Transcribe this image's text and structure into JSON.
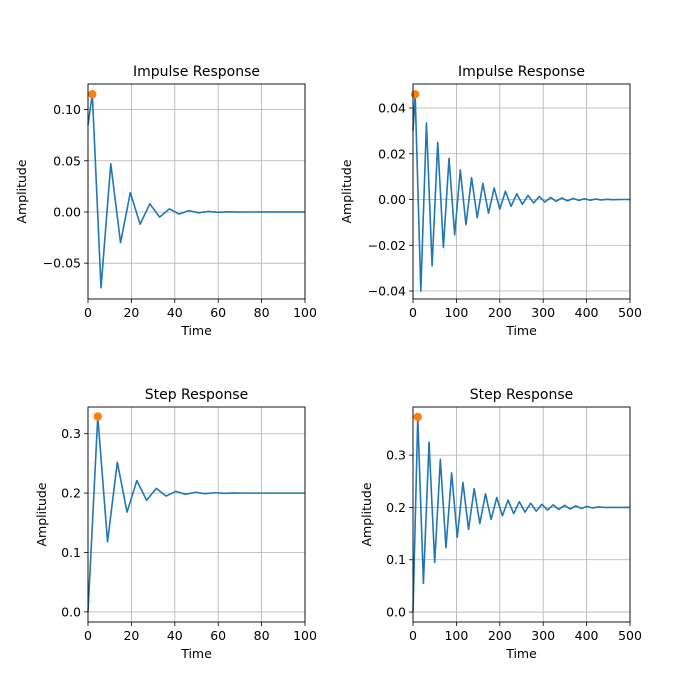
{
  "chart_data": [
    {
      "type": "line",
      "title": "Impulse Response",
      "xlabel": "Time",
      "ylabel": "Amplitude",
      "xlim": [
        0,
        100
      ],
      "ylim": [
        -0.085,
        0.125
      ],
      "xticks": [
        0,
        20,
        40,
        60,
        80,
        100
      ],
      "yticks": [
        -0.05,
        0.0,
        0.05,
        0.1
      ],
      "ytick_labels": [
        "−0.05",
        "0.00",
        "0.05",
        "0.10"
      ],
      "grid": true,
      "series": [
        {
          "color": "#1f77b4",
          "x": [
            0,
            2,
            6,
            10.5,
            15,
            19.5,
            24,
            28.5,
            33,
            37.5,
            42,
            46.5,
            51,
            55.5,
            60,
            64.5,
            69,
            80,
            100
          ],
          "y": [
            0.085,
            0.115,
            -0.074,
            0.047,
            -0.03,
            0.019,
            -0.012,
            0.008,
            -0.005,
            0.003,
            -0.002,
            0.0013,
            -0.0008,
            0.0005,
            -0.0003,
            0.0002,
            -0.0001,
            0,
            0
          ]
        }
      ],
      "marker": {
        "x": 2,
        "y": 0.115,
        "color": "#ff7f0e"
      }
    },
    {
      "type": "line",
      "title": "Impulse Response",
      "xlabel": "Time",
      "ylabel": "Amplitude",
      "xlim": [
        0,
        500
      ],
      "ylim": [
        -0.0435,
        0.0505
      ],
      "xticks": [
        0,
        100,
        200,
        300,
        400,
        500
      ],
      "yticks": [
        -0.04,
        -0.02,
        0.0,
        0.02,
        0.04
      ],
      "ytick_labels": [
        "−0.04",
        "−0.02",
        "0.00",
        "0.02",
        "0.04"
      ],
      "grid": true,
      "series": [
        {
          "color": "#1f77b4",
          "x": [
            0,
            5,
            18,
            31,
            44,
            57,
            70,
            83,
            96,
            109,
            122,
            135,
            148,
            161,
            174,
            187,
            200,
            213,
            226,
            239,
            252,
            265,
            278,
            291,
            304,
            317,
            330,
            343,
            356,
            369,
            382,
            395,
            408,
            421,
            434,
            447,
            460,
            480,
            500
          ],
          "y": [
            0.03,
            0.046,
            -0.04,
            0.0335,
            -0.029,
            0.025,
            -0.021,
            0.018,
            -0.0155,
            0.013,
            -0.011,
            0.0095,
            -0.008,
            0.007,
            -0.006,
            0.005,
            -0.0042,
            0.0036,
            -0.003,
            0.0025,
            -0.0021,
            0.0018,
            -0.0015,
            0.0013,
            -0.0011,
            0.0009,
            -0.0008,
            0.0007,
            -0.0006,
            0.0005,
            -0.0004,
            0.0003,
            -0.0003,
            0.0002,
            -0.0002,
            0.0001,
            -0.0001,
            0,
            0
          ]
        }
      ],
      "marker": {
        "x": 5,
        "y": 0.046,
        "color": "#ff7f0e"
      }
    },
    {
      "type": "line",
      "title": "Step Response",
      "xlabel": "Time",
      "ylabel": "Amplitude",
      "xlim": [
        0,
        100
      ],
      "ylim": [
        -0.017,
        0.345
      ],
      "xticks": [
        0,
        20,
        40,
        60,
        80,
        100
      ],
      "yticks": [
        0.0,
        0.1,
        0.2,
        0.3
      ],
      "ytick_labels": [
        "0.0",
        "0.1",
        "0.2",
        "0.3"
      ],
      "grid": true,
      "series": [
        {
          "color": "#1f77b4",
          "x": [
            0,
            4.5,
            9,
            13.5,
            18,
            22.5,
            27,
            31.5,
            36,
            40.5,
            45,
            49.5,
            54,
            58.5,
            63,
            67.5,
            72,
            80,
            100
          ],
          "y": [
            0.0,
            0.329,
            0.118,
            0.252,
            0.168,
            0.221,
            0.188,
            0.208,
            0.195,
            0.203,
            0.198,
            0.2015,
            0.199,
            0.2006,
            0.1996,
            0.2003,
            0.2,
            0.2,
            0.2
          ]
        }
      ],
      "marker": {
        "x": 4.5,
        "y": 0.329,
        "color": "#ff7f0e"
      }
    },
    {
      "type": "line",
      "title": "Step Response",
      "xlabel": "Time",
      "ylabel": "Amplitude",
      "xlim": [
        0,
        500
      ],
      "ylim": [
        -0.019,
        0.392
      ],
      "xticks": [
        0,
        100,
        200,
        300,
        400,
        500
      ],
      "yticks": [
        0.0,
        0.1,
        0.2,
        0.3
      ],
      "ytick_labels": [
        "0.0",
        "0.1",
        "0.2",
        "0.3"
      ],
      "grid": true,
      "series": [
        {
          "color": "#1f77b4",
          "x": [
            0,
            11,
            24,
            37,
            50,
            63,
            76,
            89,
            102,
            115,
            128,
            141,
            154,
            167,
            180,
            193,
            206,
            219,
            232,
            245,
            258,
            271,
            284,
            297,
            310,
            323,
            336,
            349,
            362,
            375,
            388,
            401,
            414,
            427,
            440,
            460,
            480,
            500
          ],
          "y": [
            0.0,
            0.373,
            0.055,
            0.325,
            0.095,
            0.292,
            0.123,
            0.266,
            0.143,
            0.248,
            0.158,
            0.236,
            0.169,
            0.226,
            0.177,
            0.219,
            0.184,
            0.214,
            0.188,
            0.211,
            0.191,
            0.208,
            0.193,
            0.206,
            0.195,
            0.205,
            0.196,
            0.204,
            0.197,
            0.203,
            0.198,
            0.202,
            0.199,
            0.201,
            0.2,
            0.2,
            0.2,
            0.2
          ]
        }
      ],
      "marker": {
        "x": 11,
        "y": 0.373,
        "color": "#ff7f0e"
      }
    }
  ]
}
